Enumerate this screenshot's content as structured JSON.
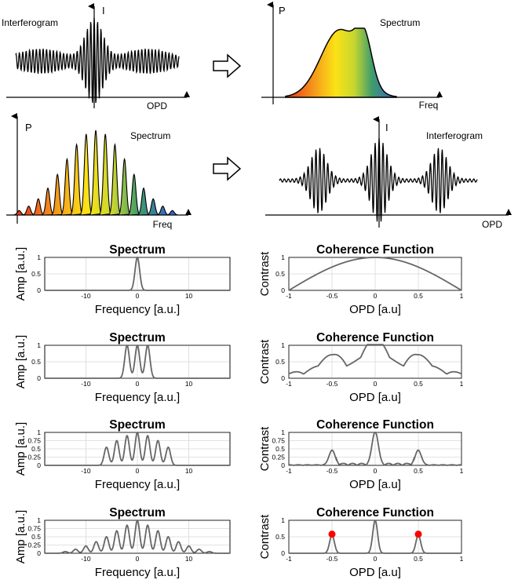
{
  "top_row": {
    "interferogram": {
      "y_axis": "I",
      "x_axis": "OPD",
      "caption": "Interferogram"
    },
    "spectrum": {
      "y_axis": "P",
      "x_axis": "Freq",
      "caption": "Spectrum"
    }
  },
  "second_row": {
    "spectrum": {
      "y_axis": "P",
      "x_axis": "Freq",
      "caption": "Spectrum"
    },
    "interferogram": {
      "y_axis": "I",
      "x_axis": "OPD",
      "caption": "Interferogram"
    }
  },
  "chart_data": [
    {
      "type": "line",
      "title": "Spectrum",
      "xlabel": "Frequency [a.u.]",
      "ylabel": "Amp [a.u.]",
      "xlim": [
        -18,
        18
      ],
      "ylim": [
        0,
        1
      ],
      "x_ticks": [
        -10,
        0,
        10
      ],
      "y_ticks": [
        0,
        0.5,
        1
      ],
      "peaks": [
        {
          "x": 0,
          "amp": 1
        }
      ]
    },
    {
      "type": "line",
      "title": "Coherence Function",
      "xlabel": "OPD [a.u]",
      "ylabel": "Contrast",
      "xlim": [
        -1,
        1
      ],
      "ylim": [
        0,
        1
      ],
      "x_ticks": [
        -1,
        -0.5,
        0,
        0.5,
        1
      ],
      "y_ticks": [
        0,
        0.5,
        1
      ],
      "description": "single broad cosine lobe peaking at 1 at OPD 0"
    },
    {
      "type": "line",
      "title": "Spectrum",
      "xlabel": "Frequency [a.u.]",
      "ylabel": "Amp [a.u.]",
      "xlim": [
        -18,
        18
      ],
      "ylim": [
        0,
        1
      ],
      "x_ticks": [
        -10,
        0,
        10
      ],
      "y_ticks": [
        0,
        0.5,
        1
      ],
      "peaks": [
        {
          "x": -2,
          "amp": 1
        },
        {
          "x": 0,
          "amp": 1
        },
        {
          "x": 2,
          "amp": 1
        }
      ]
    },
    {
      "type": "line",
      "title": "Coherence Function",
      "xlabel": "OPD [a.u]",
      "ylabel": "Contrast",
      "xlim": [
        -1,
        1
      ],
      "ylim": [
        0,
        1
      ],
      "x_ticks": [
        -1,
        -0.5,
        0,
        0.5,
        1
      ],
      "y_ticks": [
        0,
        0.5,
        1
      ],
      "peaks": [
        {
          "x": -0.5,
          "amp": 0.5
        },
        {
          "x": 0,
          "amp": 1
        },
        {
          "x": 0.5,
          "amp": 0.5
        }
      ]
    },
    {
      "type": "line",
      "title": "Spectrum",
      "xlabel": "Frequency [a.u.]",
      "ylabel": "Amp [a.u.]",
      "xlim": [
        -18,
        18
      ],
      "ylim": [
        0,
        1
      ],
      "x_ticks": [
        -10,
        0,
        10
      ],
      "y_ticks": [
        0,
        0.25,
        0.5,
        0.75,
        1
      ],
      "peaks": [
        {
          "x": -6,
          "amp": 0.55
        },
        {
          "x": -4,
          "amp": 0.75
        },
        {
          "x": -2,
          "amp": 0.9
        },
        {
          "x": 0,
          "amp": 1
        },
        {
          "x": 2,
          "amp": 0.9
        },
        {
          "x": 4,
          "amp": 0.75
        },
        {
          "x": 6,
          "amp": 0.55
        }
      ]
    },
    {
      "type": "line",
      "title": "Coherence Function",
      "xlabel": "OPD [a.u]",
      "ylabel": "Contrast",
      "xlim": [
        -1,
        1
      ],
      "ylim": [
        0,
        1
      ],
      "x_ticks": [
        -1,
        -0.5,
        0,
        0.5,
        1
      ],
      "y_ticks": [
        0,
        0.25,
        0.5,
        0.75,
        1
      ],
      "peaks": [
        {
          "x": -0.5,
          "amp": 0.45
        },
        {
          "x": 0,
          "amp": 1
        },
        {
          "x": 0.5,
          "amp": 0.45
        }
      ]
    },
    {
      "type": "line",
      "title": "Spectrum",
      "xlabel": "Frequency [a.u.]",
      "ylabel": "Amp [a.u.]",
      "xlim": [
        -18,
        18
      ],
      "ylim": [
        0,
        1
      ],
      "x_ticks": [
        -10,
        0,
        10
      ],
      "y_ticks": [
        0,
        0.25,
        0.5,
        0.75,
        1
      ],
      "peaks": [
        {
          "x": -14,
          "amp": 0.05
        },
        {
          "x": -12,
          "amp": 0.12
        },
        {
          "x": -10,
          "amp": 0.22
        },
        {
          "x": -8,
          "amp": 0.35
        },
        {
          "x": -6,
          "amp": 0.5
        },
        {
          "x": -4,
          "amp": 0.68
        },
        {
          "x": -2,
          "amp": 0.85
        },
        {
          "x": 0,
          "amp": 1
        },
        {
          "x": 2,
          "amp": 0.85
        },
        {
          "x": 4,
          "amp": 0.68
        },
        {
          "x": 6,
          "amp": 0.5
        },
        {
          "x": 8,
          "amp": 0.35
        },
        {
          "x": 10,
          "amp": 0.22
        },
        {
          "x": 12,
          "amp": 0.12
        },
        {
          "x": 14,
          "amp": 0.05
        }
      ]
    },
    {
      "type": "line",
      "title": "Coherence Function",
      "xlabel": "OPD [a.u]",
      "ylabel": "Contrast",
      "xlim": [
        -1,
        1
      ],
      "ylim": [
        0,
        1
      ],
      "x_ticks": [
        -1,
        -0.5,
        0,
        0.5,
        1
      ],
      "y_ticks": [
        0,
        0.5,
        1
      ],
      "peaks": [
        {
          "x": -0.5,
          "amp": 0.55
        },
        {
          "x": 0,
          "amp": 1
        },
        {
          "x": 0.5,
          "amp": 0.55
        }
      ],
      "markers": [
        {
          "x": -0.5,
          "y": 0.58
        },
        {
          "x": 0.5,
          "y": 0.58
        }
      ],
      "marker_color": "#ff0000"
    }
  ],
  "colors": {
    "curve": "#666666",
    "grid": "#d9d9d9",
    "frame": "#000000",
    "marker": "#ff0000"
  }
}
